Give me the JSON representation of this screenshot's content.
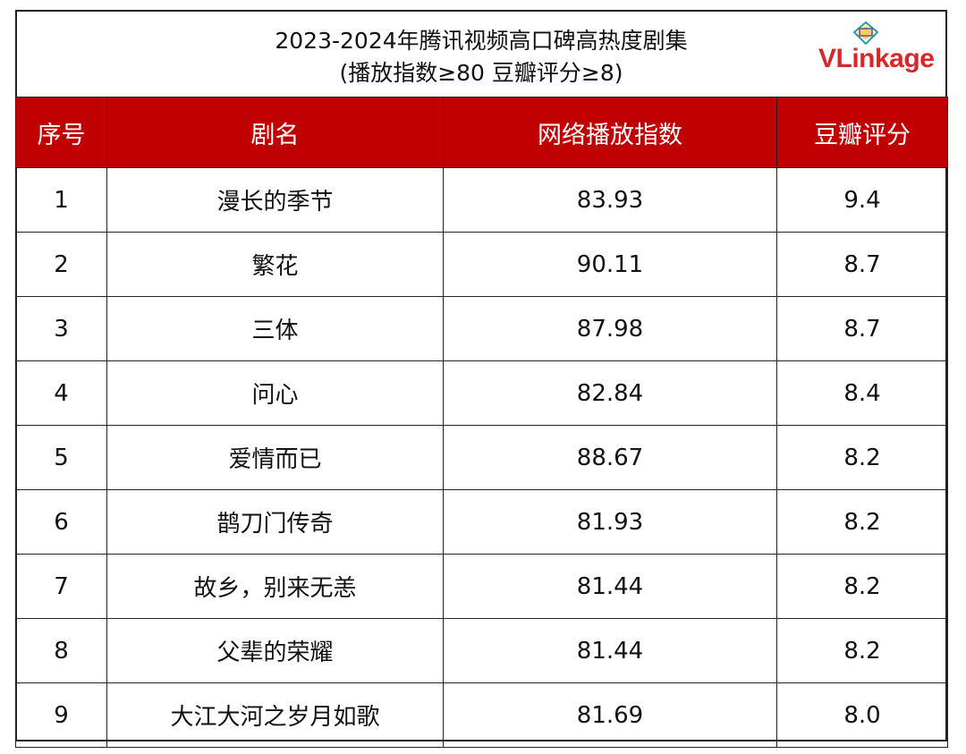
{
  "title": "2023-2024年腾讯视频高口碑高热度剧集",
  "subtitle": "(播放指数≥80 豆瓣评分≥8)",
  "logo": {
    "text_v": "V",
    "text_rest": "Linkage"
  },
  "colors": {
    "header_bg": "#c00000",
    "header_text": "#ffffff",
    "logo": "#d62828"
  },
  "table": {
    "headers": [
      "序号",
      "剧名",
      "网络播放指数",
      "豆瓣评分"
    ],
    "rows": [
      [
        "1",
        "漫长的季节",
        "83.93",
        "9.4"
      ],
      [
        "2",
        "繁花",
        "90.11",
        "8.7"
      ],
      [
        "3",
        "三体",
        "87.98",
        "8.7"
      ],
      [
        "4",
        "问心",
        "82.84",
        "8.4"
      ],
      [
        "5",
        "爱情而已",
        "88.67",
        "8.2"
      ],
      [
        "6",
        "鹊刀门传奇",
        "81.93",
        "8.2"
      ],
      [
        "7",
        "故乡，别来无恙",
        "81.44",
        "8.2"
      ],
      [
        "8",
        "父辈的荣耀",
        "81.44",
        "8.2"
      ],
      [
        "9",
        "大江大河之岁月如歌",
        "81.69",
        "8.0"
      ]
    ]
  }
}
